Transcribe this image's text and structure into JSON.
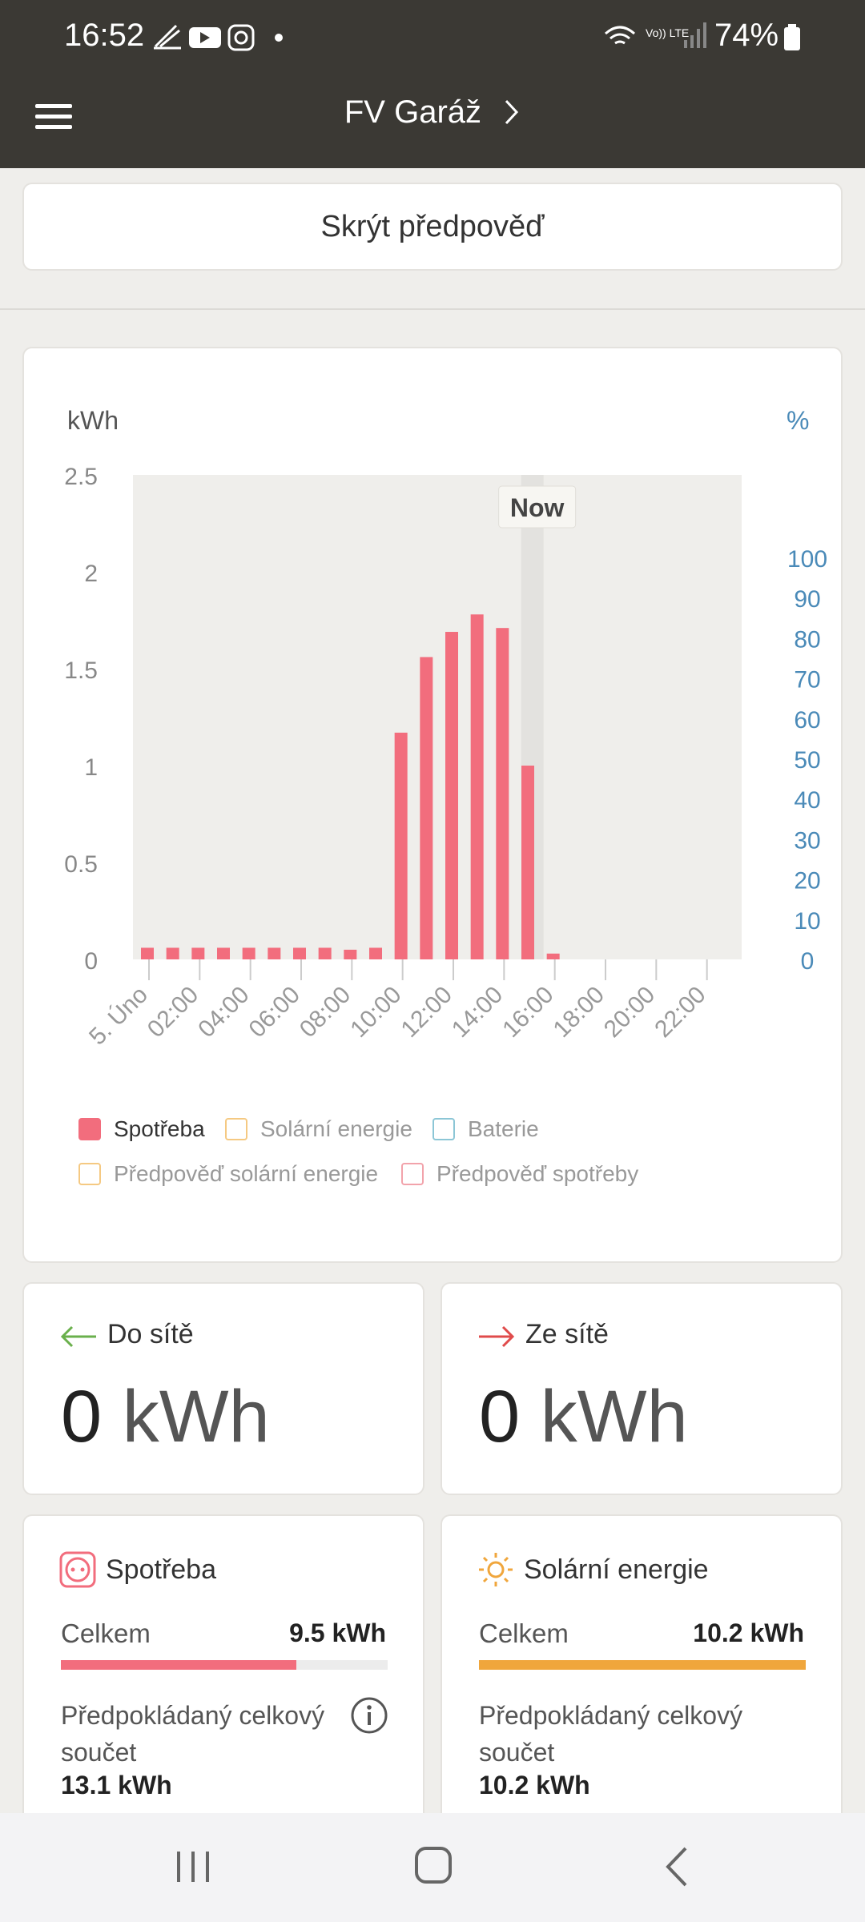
{
  "status": {
    "time": "16:52",
    "battery": "74%",
    "network": "Vo)) LTE"
  },
  "header": {
    "title": "FV Garáž"
  },
  "forecast_button": {
    "label": "Skrýt předpověď"
  },
  "chart_data": {
    "type": "bar",
    "ylabel": "kWh",
    "y2label": "%",
    "ylim": [
      0,
      2.5
    ],
    "y2lim": [
      0,
      100
    ],
    "yticks": [
      "2.5",
      "2",
      "1.5",
      "1",
      "0.5",
      "0"
    ],
    "y2ticks": [
      "100",
      "90",
      "80",
      "70",
      "60",
      "50",
      "40",
      "30",
      "20",
      "10",
      "0"
    ],
    "xticks": [
      "5. Úno",
      "02:00",
      "04:00",
      "06:00",
      "08:00",
      "10:00",
      "12:00",
      "14:00",
      "16:00",
      "18:00",
      "20:00",
      "22:00"
    ],
    "now_label": "Now",
    "now_hour": 16,
    "hours": [
      0,
      1,
      2,
      3,
      4,
      5,
      6,
      7,
      8,
      9,
      10,
      11,
      12,
      13,
      14,
      15,
      16
    ],
    "series": [
      {
        "name": "Spotřeba",
        "values": [
          0.06,
          0.06,
          0.06,
          0.06,
          0.06,
          0.06,
          0.06,
          0.06,
          0.05,
          0.06,
          1.17,
          1.56,
          1.69,
          1.78,
          1.71,
          1.0,
          0.03
        ],
        "color": "#f26d7d"
      }
    ]
  },
  "legend": [
    {
      "label": "Spotřeba",
      "color": "#f26d7d",
      "filled": true
    },
    {
      "label": "Solární energie",
      "color": "#f5c982",
      "filled": false
    },
    {
      "label": "Baterie",
      "color": "#8cc6d6",
      "filled": false
    },
    {
      "label": "Předpověď solární energie",
      "color": "#f5c982",
      "filled": false
    },
    {
      "label": "Předpověď spotřeby",
      "color": "#f2a3ab",
      "filled": false
    }
  ],
  "grid_export": {
    "label": "Do sítě",
    "value": "0",
    "unit": "kWh",
    "color": "#6ab04c"
  },
  "grid_import": {
    "label": "Ze sítě",
    "value": "0",
    "unit": "kWh",
    "color": "#e04b4b"
  },
  "consumption": {
    "title": "Spotřeba",
    "total_label": "Celkem",
    "total_value": "9.5 kWh",
    "progress": 0.72,
    "color": "#f26d7d",
    "expected_label": "Předpokládaný celkový součet",
    "expected_value": "13.1 kWh"
  },
  "solar": {
    "title": "Solární energie",
    "total_label": "Celkem",
    "total_value": "10.2 kWh",
    "progress": 1.0,
    "color": "#f0a63c",
    "expected_label": "Předpokládaný celkový součet",
    "expected_value": "10.2 kWh"
  }
}
